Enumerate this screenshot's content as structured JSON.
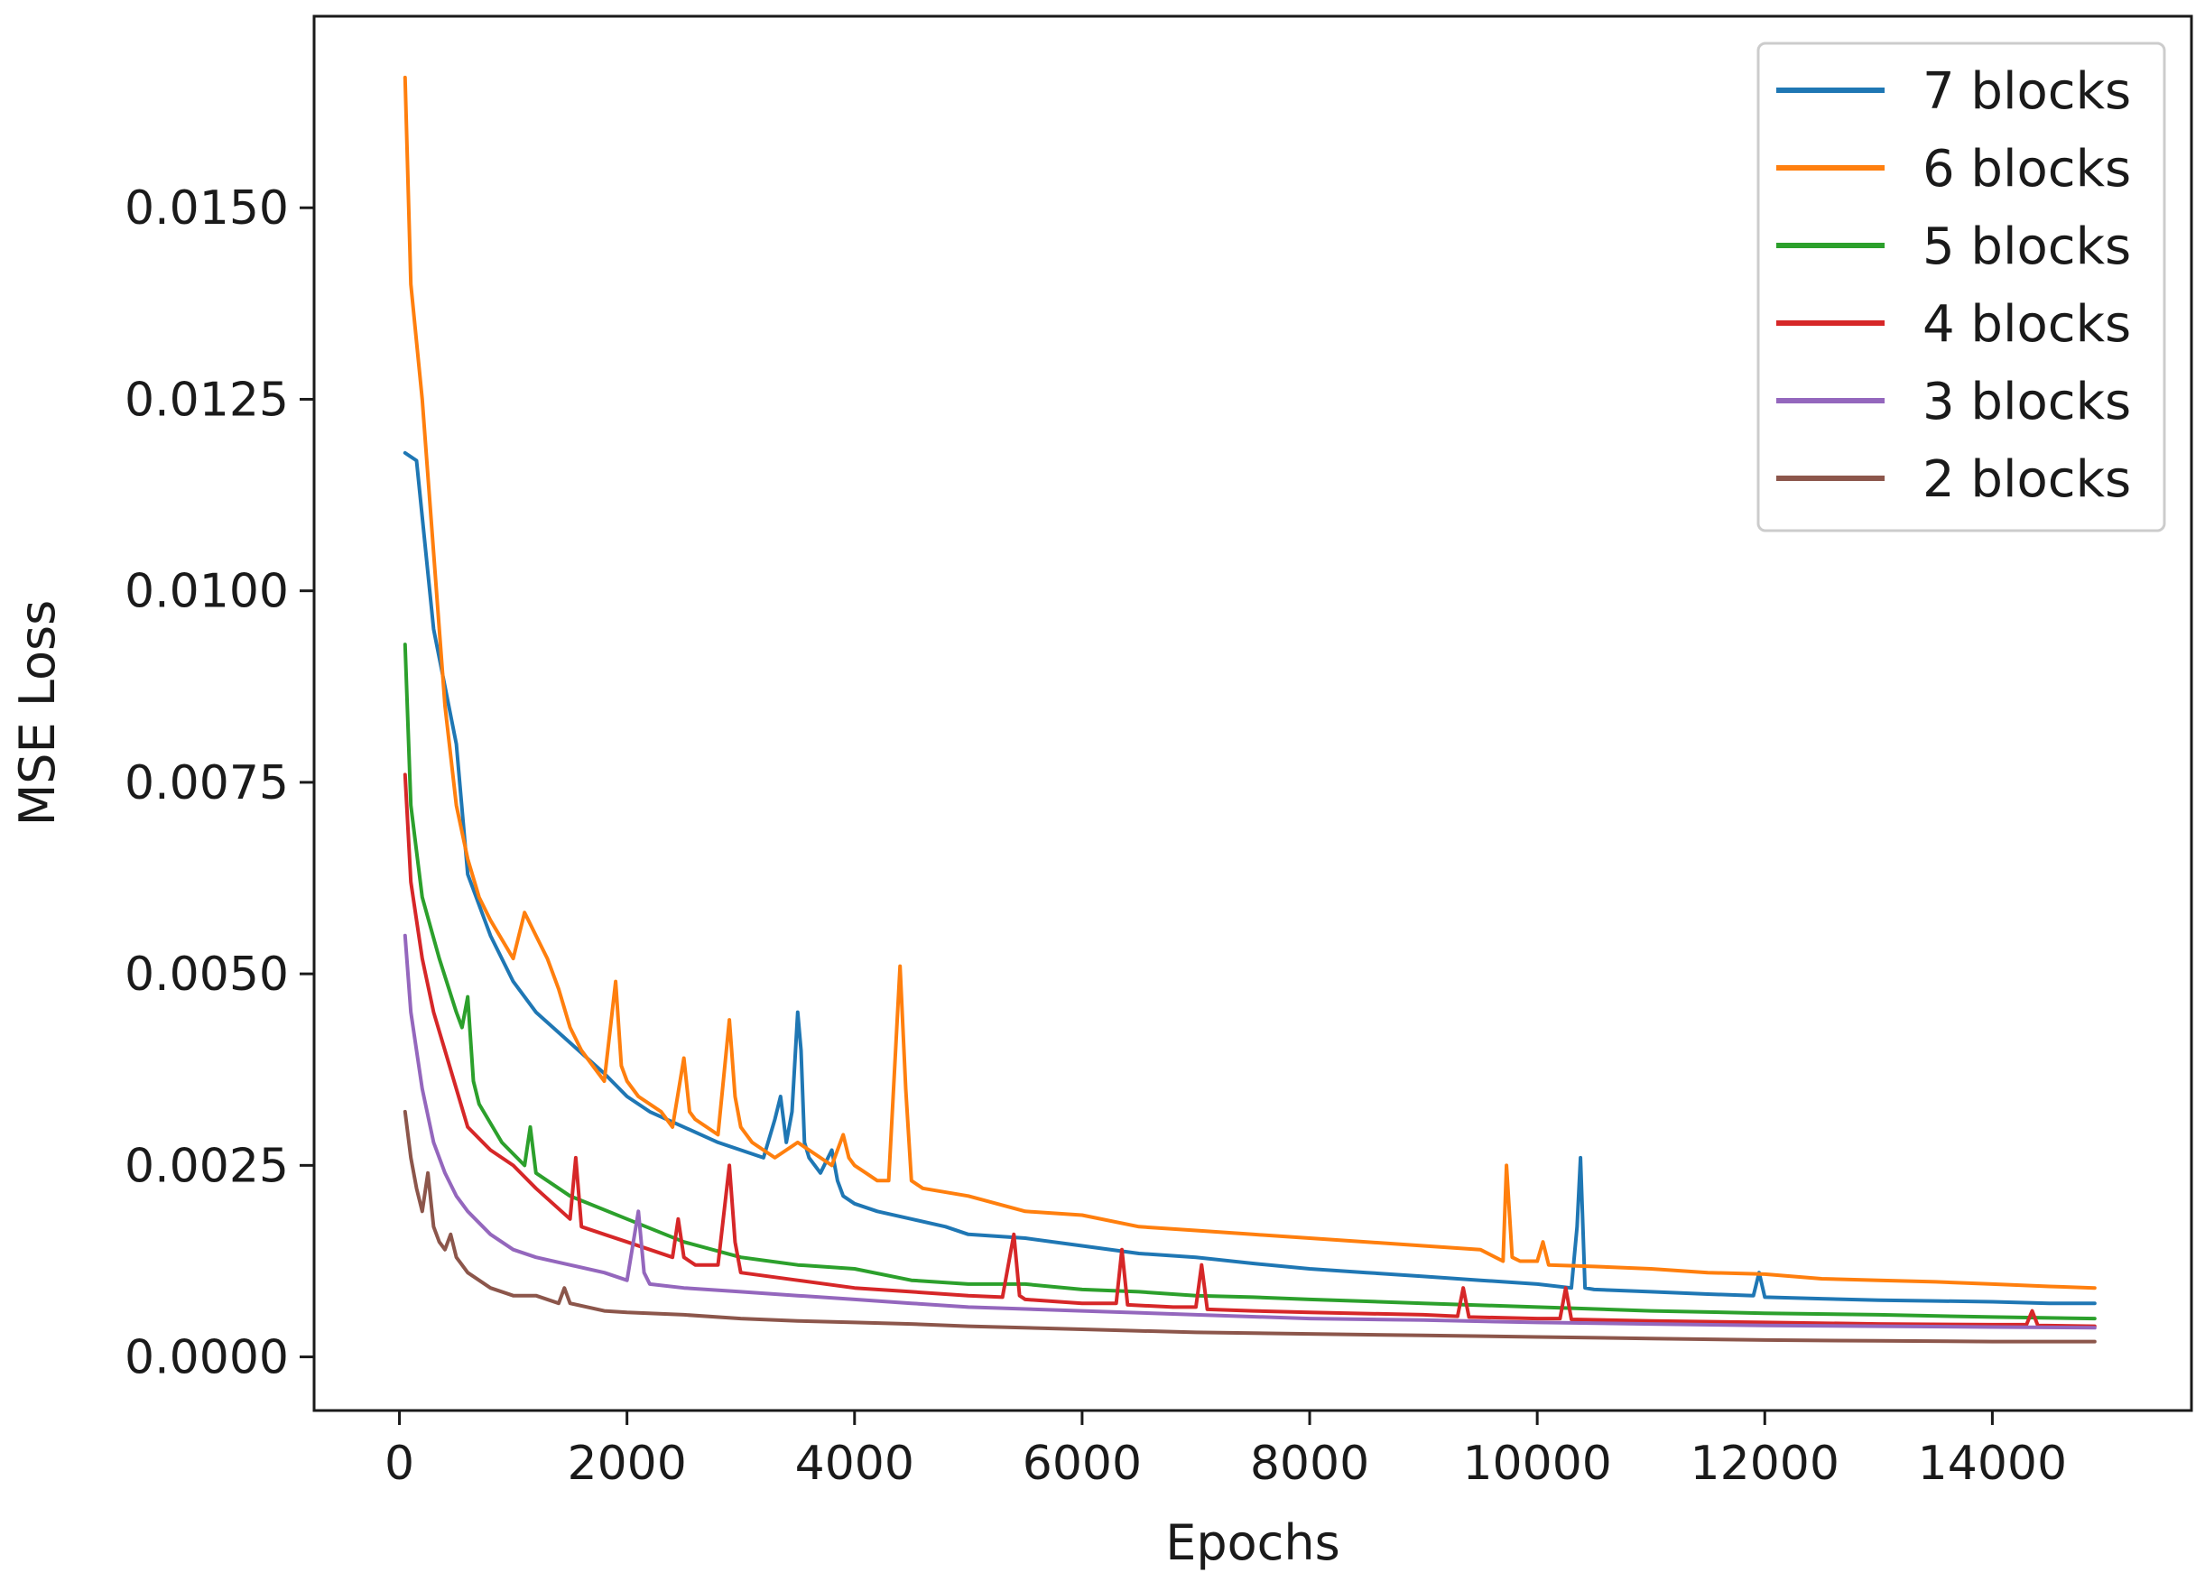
{
  "chart_data": {
    "type": "line",
    "title": "",
    "xlabel": "Epochs",
    "ylabel": "MSE Loss",
    "xlim": [
      -750,
      15750
    ],
    "ylim": [
      -0.0007,
      0.0175
    ],
    "xticks": [
      0,
      2000,
      4000,
      6000,
      8000,
      10000,
      12000,
      14000
    ],
    "xtick_labels": [
      "0",
      "2000",
      "4000",
      "6000",
      "8000",
      "10000",
      "12000",
      "14000"
    ],
    "yticks": [
      0.0,
      0.0025,
      0.005,
      0.0075,
      0.01,
      0.0125,
      0.015
    ],
    "ytick_labels": [
      "0.0000",
      "0.0025",
      "0.0050",
      "0.0075",
      "0.0100",
      "0.0125",
      "0.0150"
    ],
    "grid": false,
    "legend_position": "top-right",
    "series": [
      {
        "name": "7 blocks",
        "color": "#1f77b4",
        "x": [
          50,
          150,
          300,
          500,
          600,
          800,
          1000,
          1200,
          1500,
          1800,
          2000,
          2200,
          2500,
          2800,
          3000,
          3200,
          3300,
          3350,
          3400,
          3450,
          3500,
          3530,
          3560,
          3600,
          3700,
          3800,
          3850,
          3900,
          4000,
          4200,
          4500,
          4800,
          5000,
          5500,
          6000,
          6500,
          7000,
          7500,
          8000,
          8500,
          9000,
          9500,
          10000,
          10300,
          10350,
          10380,
          10420,
          10500,
          11000,
          11500,
          11900,
          11950,
          12000,
          12500,
          13000,
          13500,
          14000,
          14500,
          14900
        ],
        "y": [
          0.0118,
          0.0117,
          0.0095,
          0.008,
          0.0063,
          0.0055,
          0.0049,
          0.0045,
          0.0041,
          0.0037,
          0.0034,
          0.0032,
          0.003,
          0.0028,
          0.0027,
          0.0026,
          0.0031,
          0.0034,
          0.0028,
          0.0032,
          0.0045,
          0.004,
          0.0028,
          0.0026,
          0.0024,
          0.0027,
          0.0023,
          0.0021,
          0.002,
          0.0019,
          0.0018,
          0.0017,
          0.0016,
          0.00155,
          0.00145,
          0.00135,
          0.0013,
          0.00122,
          0.00115,
          0.0011,
          0.00105,
          0.001,
          0.00095,
          0.0009,
          0.0017,
          0.0026,
          0.0009,
          0.00088,
          0.00085,
          0.00082,
          0.0008,
          0.0011,
          0.00078,
          0.00076,
          0.00074,
          0.00073,
          0.00072,
          0.0007,
          0.0007
        ]
      },
      {
        "name": "6 blocks",
        "color": "#ff7f0e",
        "x": [
          50,
          100,
          200,
          300,
          400,
          500,
          600,
          700,
          800,
          1000,
          1100,
          1200,
          1300,
          1400,
          1500,
          1600,
          1700,
          1800,
          1900,
          1950,
          2000,
          2100,
          2200,
          2300,
          2400,
          2500,
          2550,
          2600,
          2700,
          2800,
          2900,
          2950,
          3000,
          3100,
          3200,
          3300,
          3400,
          3500,
          3600,
          3700,
          3800,
          3900,
          3950,
          4000,
          4100,
          4200,
          4300,
          4400,
          4450,
          4500,
          4600,
          5000,
          5500,
          6000,
          6500,
          7000,
          7500,
          8000,
          8500,
          9000,
          9500,
          9700,
          9730,
          9780,
          9850,
          10000,
          10050,
          10100,
          10500,
          11000,
          11500,
          12000,
          12500,
          13000,
          13500,
          14000,
          14500,
          14900
        ],
        "y": [
          0.0167,
          0.014,
          0.0125,
          0.0105,
          0.0085,
          0.0072,
          0.0065,
          0.006,
          0.0057,
          0.0052,
          0.0058,
          0.0055,
          0.0052,
          0.0048,
          0.0043,
          0.004,
          0.0038,
          0.0036,
          0.0049,
          0.0038,
          0.0036,
          0.0034,
          0.0033,
          0.0032,
          0.003,
          0.0039,
          0.0032,
          0.0031,
          0.003,
          0.0029,
          0.0044,
          0.0034,
          0.003,
          0.0028,
          0.0027,
          0.0026,
          0.0027,
          0.0028,
          0.0027,
          0.0026,
          0.0025,
          0.0029,
          0.0026,
          0.0025,
          0.0024,
          0.0023,
          0.0023,
          0.0051,
          0.0035,
          0.0023,
          0.0022,
          0.0021,
          0.0019,
          0.00185,
          0.0017,
          0.00165,
          0.0016,
          0.00155,
          0.0015,
          0.00145,
          0.0014,
          0.00125,
          0.0025,
          0.0013,
          0.00125,
          0.00125,
          0.0015,
          0.0012,
          0.00118,
          0.00115,
          0.0011,
          0.00108,
          0.00102,
          0.001,
          0.00098,
          0.00095,
          0.00092,
          0.0009
        ]
      },
      {
        "name": "5 blocks",
        "color": "#2ca02c",
        "x": [
          50,
          100,
          200,
          350,
          500,
          550,
          600,
          650,
          700,
          900,
          1100,
          1150,
          1200,
          1500,
          2000,
          2500,
          3000,
          3500,
          4000,
          4500,
          5000,
          5500,
          6000,
          6500,
          7000,
          7500,
          8000,
          9000,
          10000,
          11000,
          12000,
          13000,
          14000,
          14900
        ],
        "y": [
          0.0093,
          0.0072,
          0.006,
          0.0052,
          0.0045,
          0.0043,
          0.0047,
          0.0036,
          0.0033,
          0.0028,
          0.0025,
          0.003,
          0.0024,
          0.0021,
          0.0018,
          0.0015,
          0.0013,
          0.0012,
          0.00115,
          0.001,
          0.00095,
          0.00095,
          0.00088,
          0.00085,
          0.0008,
          0.00078,
          0.00075,
          0.0007,
          0.00065,
          0.0006,
          0.00057,
          0.00055,
          0.00052,
          0.0005
        ]
      },
      {
        "name": "4 blocks",
        "color": "#d62728",
        "x": [
          50,
          100,
          200,
          300,
          400,
          500,
          600,
          800,
          1000,
          1200,
          1500,
          1550,
          1600,
          1800,
          2000,
          2200,
          2400,
          2450,
          2500,
          2600,
          2800,
          2900,
          2950,
          3000,
          3500,
          4000,
          4500,
          5000,
          5300,
          5400,
          5450,
          5500,
          6000,
          6300,
          6350,
          6400,
          6800,
          7000,
          7050,
          7100,
          7500,
          8000,
          9000,
          9300,
          9350,
          9400,
          10000,
          10200,
          10250,
          10300,
          11000,
          12000,
          13000,
          14000,
          14300,
          14350,
          14400,
          14900
        ],
        "y": [
          0.0076,
          0.0062,
          0.0052,
          0.0045,
          0.004,
          0.0035,
          0.003,
          0.0027,
          0.0025,
          0.0022,
          0.0018,
          0.0026,
          0.0017,
          0.0016,
          0.0015,
          0.0014,
          0.0013,
          0.0018,
          0.0013,
          0.0012,
          0.0012,
          0.0025,
          0.0015,
          0.0011,
          0.001,
          0.0009,
          0.00085,
          0.0008,
          0.00078,
          0.0016,
          0.0008,
          0.00075,
          0.0007,
          0.0007,
          0.0014,
          0.00068,
          0.00065,
          0.00065,
          0.0012,
          0.00062,
          0.0006,
          0.00058,
          0.00055,
          0.00053,
          0.0009,
          0.00052,
          0.0005,
          0.0005,
          0.0009,
          0.00049,
          0.00047,
          0.00045,
          0.00043,
          0.00042,
          0.00042,
          0.0006,
          0.00041,
          0.0004
        ]
      },
      {
        "name": "3 blocks",
        "color": "#9467bd",
        "x": [
          50,
          100,
          200,
          300,
          400,
          500,
          600,
          800,
          1000,
          1200,
          1500,
          1800,
          2000,
          2100,
          2150,
          2200,
          2500,
          3000,
          3500,
          4000,
          4500,
          5000,
          6000,
          7000,
          8000,
          9000,
          10000,
          11000,
          12000,
          13000,
          14000,
          14900
        ],
        "y": [
          0.0055,
          0.0045,
          0.0035,
          0.0028,
          0.0024,
          0.0021,
          0.0019,
          0.0016,
          0.0014,
          0.0013,
          0.0012,
          0.0011,
          0.001,
          0.0019,
          0.0011,
          0.00095,
          0.0009,
          0.00085,
          0.0008,
          0.00075,
          0.0007,
          0.00065,
          0.0006,
          0.00055,
          0.0005,
          0.00048,
          0.00045,
          0.00043,
          0.00041,
          0.0004,
          0.00039,
          0.00038
        ]
      },
      {
        "name": "2 blocks",
        "color": "#8c564b",
        "x": [
          50,
          100,
          150,
          200,
          250,
          300,
          350,
          400,
          450,
          500,
          550,
          600,
          700,
          800,
          1000,
          1200,
          1400,
          1450,
          1500,
          1800,
          2000,
          2500,
          3000,
          3500,
          4000,
          4500,
          5000,
          6000,
          7000,
          8000,
          9000,
          10000,
          11000,
          12000,
          13000,
          14000,
          14900
        ],
        "y": [
          0.0032,
          0.0026,
          0.0022,
          0.0019,
          0.0024,
          0.0017,
          0.0015,
          0.0014,
          0.0016,
          0.0013,
          0.0012,
          0.0011,
          0.001,
          0.0009,
          0.0008,
          0.0008,
          0.0007,
          0.0009,
          0.0007,
          0.0006,
          0.00058,
          0.00055,
          0.0005,
          0.00047,
          0.00045,
          0.00043,
          0.0004,
          0.00036,
          0.00032,
          0.0003,
          0.00028,
          0.00026,
          0.00024,
          0.00022,
          0.00021,
          0.0002,
          0.0002
        ]
      }
    ]
  }
}
